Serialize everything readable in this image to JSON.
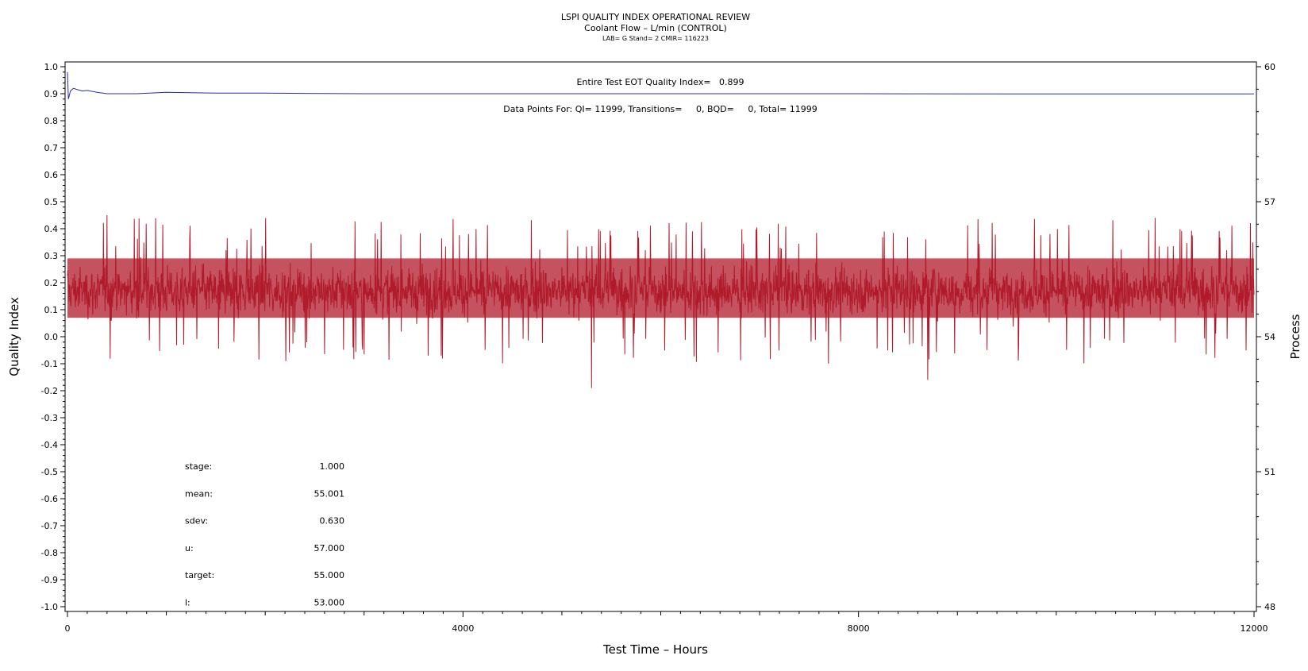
{
  "header": {
    "title": "LSPI QUALITY INDEX OPERATIONAL REVIEW",
    "subtitle": "Coolant Flow – L/min (CONTROL)",
    "meta": "LAB= G Stand= 2 CMIR= 116223"
  },
  "annotations": {
    "eot": "Entire Test EOT Quality Index=   0.899",
    "datapoints": "Data Points For: QI= 11999, Transitions=     0, BQD=     0, Total= 11999"
  },
  "stats": [
    {
      "label": "stage:",
      "value": "1.000"
    },
    {
      "label": "mean:",
      "value": "55.001"
    },
    {
      "label": "sdev:",
      "value": "0.630"
    },
    {
      "label": "u:",
      "value": "57.000"
    },
    {
      "label": "target:",
      "value": "55.000"
    },
    {
      "label": "l:",
      "value": "53.000"
    }
  ],
  "chart_data": {
    "type": "line",
    "xlabel": "Test Time – Hours",
    "ylabel": "Quality Index",
    "y2label": "Process",
    "xlim": [
      0,
      12000
    ],
    "ylim": [
      -1.0,
      1.0
    ],
    "y2lim": [
      48,
      60
    ],
    "x_ticks": [
      0,
      4000,
      8000,
      12000
    ],
    "y_ticks": [
      "1.0",
      "0.9",
      "0.8",
      "0.7",
      "0.6",
      "0.5",
      "0.4",
      "0.3",
      "0.2",
      "0.1",
      "0.0",
      "-0.1",
      "-0.2",
      "-0.3",
      "-0.4",
      "-0.5",
      "-0.6",
      "-0.7",
      "-0.8",
      "-0.9",
      "-1.0"
    ],
    "y2_ticks": [
      "60",
      "57",
      "54",
      "51",
      "48"
    ],
    "series": [
      {
        "color": "#2b2bb0",
        "x": [
          0,
          10,
          30,
          60,
          100,
          150,
          200,
          300,
          400,
          500,
          700,
          1000,
          1500,
          2000,
          3000,
          4000,
          6000,
          8000,
          10000,
          12000
        ],
        "values": [
          0.98,
          0.88,
          0.91,
          0.92,
          0.915,
          0.91,
          0.912,
          0.905,
          0.9,
          0.9,
          0.9,
          0.905,
          0.902,
          0.902,
          0.9,
          0.9,
          0.9,
          0.9,
          0.899,
          0.899
        ]
      },
      {
        "color": "#b01a2a",
        "x_range": [
          0,
          12000
        ],
        "center": 0.17,
        "typical_band": [
          0.01,
          0.33
        ],
        "peaks": [
          {
            "x": 400,
            "value": 0.45
          },
          {
            "x": 5300,
            "value": -0.19
          },
          {
            "x": 8700,
            "value": -0.16
          },
          {
            "x": 9650,
            "value": 0.45
          },
          {
            "x": 11650,
            "value": -0.17
          },
          {
            "x": 11000,
            "value": 0.44
          }
        ]
      }
    ]
  }
}
